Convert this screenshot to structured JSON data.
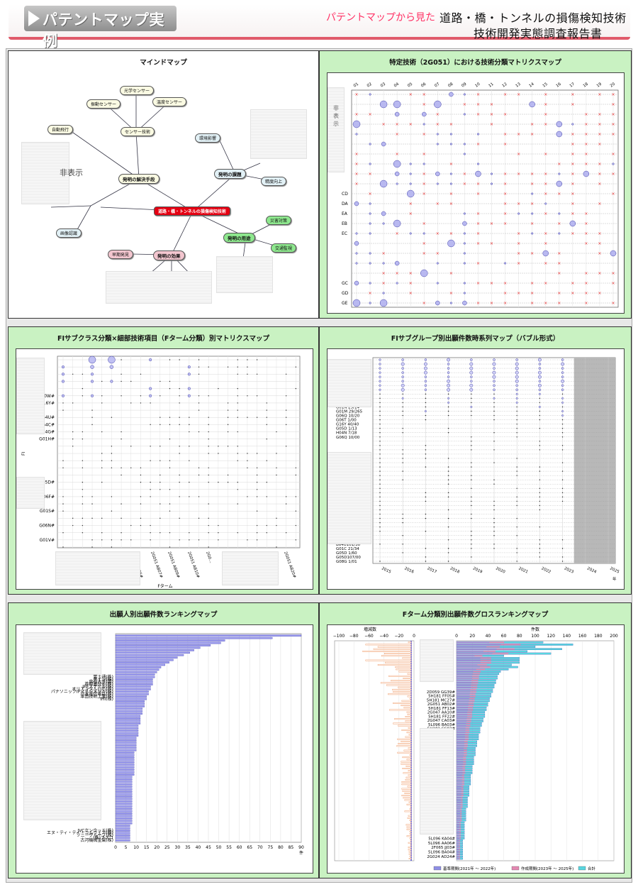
{
  "header": {
    "title": "パテントマップ実例",
    "subtitle": "パテントマップから見た",
    "report_line1": "道路・橋・トンネルの損傷検知技術",
    "report_line2": "技術開発実態調査報告書"
  },
  "mindmap": {
    "title": "マインドマップ",
    "hidden_label": "非表示",
    "center": "道路・橋・トンネルの損傷検知技術",
    "nodes": {
      "n1": "光学センサー",
      "n2": "振動センサー",
      "n3": "温度センサー",
      "n4": "センサー技術",
      "n5": "自動飛行",
      "n6": "発明の解決手段",
      "n7": "環境影響",
      "n8": "発明の課題",
      "n9": "精度向上",
      "n10": "画像認識",
      "n11": "災害対策",
      "n12": "発明の用途",
      "n13": "交通監視",
      "n14": "早期発見",
      "n15": "発明の効果"
    }
  },
  "matrix1": {
    "title": "特定技術（2G051）における技術分類マトリクスマップ",
    "hidden_label": "非表示",
    "col_labels": [
      "01",
      "02",
      "03",
      "04",
      "05",
      "06",
      "07",
      "08",
      "09",
      "10",
      "11",
      "12",
      "13",
      "14",
      "15",
      "16",
      "17",
      "18",
      "19",
      "20"
    ],
    "row_labels": [
      "CD",
      "DA",
      "EA",
      "EB",
      "EC",
      "GC",
      "GD",
      "GE"
    ]
  },
  "matrix2": {
    "title": "FIサブクラス分類×細部技術項目（Fターム分類）別マトリクスマップ",
    "y_axis_title": "FI",
    "x_axis_title": "Fターム",
    "row_labels": [
      "B60W#",
      "G16Y#",
      "B64U#",
      "B64C#",
      "E04G#",
      "G01H#",
      "G05D#",
      "G06F#",
      "G01S#",
      "G06N#",
      "G01V#"
    ],
    "col_labels": [
      "2G051 AB06#",
      "2G051 AB07#",
      "2G051 AB09#",
      "2G051 AB10#",
      "2G0…",
      "2G051 AB15#",
      "2G051 AB20#"
    ]
  },
  "bubble": {
    "title": "FIサブグループ別出願件数時系列マップ（バブル形式）",
    "row_labels_top": [
      "G01N 21/84",
      "G01N 29/14",
      "G01M 29/265",
      "G06Q 10/20",
      "G06T 1/00",
      "G16Y 40/40",
      "G05D 1/13",
      "H04N 7/18",
      "G06Q 10/00"
    ],
    "row_labels_bottom": [
      "B64U101/30",
      "G01C 21/34",
      "G05D 1/60",
      "G05D107/00",
      "G08G 1/01"
    ],
    "years": [
      "2015",
      "2016",
      "2017",
      "2018",
      "2019",
      "2020",
      "2021",
      "2022",
      "2023",
      "2024",
      "2025"
    ],
    "year_unit": "年"
  },
  "rank1": {
    "title": "出願人別出願件数ランキングマップ",
    "unit": "件",
    "labels_mid": [
      "富士通(株)",
      "ケイン(株)",
      "京都大学(国)",
      "首都高技術(株)",
      "JFEスチール(株)",
      "オリエンタル白石(株)",
      "パナソニックIPマネジメント(株)",
      "日本電信電話(株)",
      "本田技研工業(株)",
      "IHI(株)"
    ],
    "labels_bottom": [
      "JVCケンウッド(株)",
      "エヌ・ティ・ティ・コムウェア(株)",
      "ソニーグループ(株)",
      "(株)ブスコ",
      "古河機械金属(株)"
    ],
    "x_ticks": [
      "0",
      "5",
      "10",
      "15",
      "20",
      "25",
      "30",
      "35",
      "40",
      "45",
      "50",
      "55",
      "60",
      "65",
      "70",
      "75",
      "80",
      "85",
      "90"
    ],
    "values": [
      90,
      76,
      53,
      51,
      46,
      41,
      38,
      36,
      33,
      30,
      28,
      26,
      24,
      22,
      21,
      20,
      19,
      19,
      18,
      18,
      18,
      17,
      17,
      16,
      16,
      15,
      15,
      14,
      14,
      14,
      13,
      13,
      13,
      12,
      12,
      12,
      12,
      11,
      11,
      11,
      11,
      11,
      10,
      10,
      10,
      10,
      10,
      10,
      9,
      9,
      9,
      9,
      9,
      9,
      9,
      9,
      9,
      9,
      8,
      8,
      8,
      8,
      8,
      8,
      8,
      8,
      8,
      8,
      8,
      8,
      8,
      8,
      8,
      8,
      8,
      8,
      8,
      8,
      7,
      7,
      7,
      7,
      7,
      7,
      7
    ]
  },
  "rank2": {
    "title": "Fターム分類別出願件数グロスランキングマップ",
    "left_axis_title": "増減数",
    "right_axis_title": "件数",
    "left_ticks": [
      "−100",
      "−80",
      "−60",
      "−40",
      "−20",
      "0"
    ],
    "right_ticks": [
      "0",
      "20",
      "40",
      "60",
      "80",
      "100",
      "120",
      "140",
      "160",
      "180",
      "200"
    ],
    "labels_mid": [
      "2D059 GG39#",
      "5H181 FF05#",
      "5H181 MC27#",
      "2G051 AB02#",
      "5H181 FF13#",
      "2G047 AA10#",
      "5H181 FF22#",
      "2G047 CA03#",
      "5L096 BA03#",
      "5H181 CC03#"
    ],
    "labels_bottom": [
      "5L096 KA04#",
      "5L096 AA06#",
      "2F065 JJ03#",
      "5L096 BA04#",
      "2G024 AD24#"
    ],
    "legend": [
      "基準期間(2021年 〜 2022年)",
      "作成期間(2023年 〜 2025年)",
      "合計"
    ],
    "colors": {
      "base": "#8f8fe6",
      "current": "#e488b2",
      "total": "#58d6e0",
      "change": "#f0a070"
    },
    "totals": [
      110,
      148,
      100,
      134,
      90,
      120,
      60,
      80,
      80,
      80,
      70,
      78,
      66,
      56,
      54,
      52,
      52,
      50,
      50,
      48,
      48,
      46,
      46,
      44,
      44,
      42,
      42,
      40,
      40,
      38,
      38,
      36,
      36,
      36,
      34,
      34,
      32,
      32,
      30,
      30,
      30,
      28,
      28,
      28,
      26,
      26,
      26,
      24,
      24,
      24,
      24,
      22,
      22,
      22,
      22,
      20,
      20,
      20,
      20,
      18,
      18,
      18,
      18,
      18,
      16,
      16,
      16,
      16,
      16,
      14,
      14,
      14,
      14,
      14,
      12,
      12,
      12,
      12,
      12,
      12,
      10,
      10,
      10,
      10,
      10,
      10,
      10,
      10,
      8,
      8,
      8,
      8,
      8,
      8,
      8,
      8,
      8
    ]
  }
}
